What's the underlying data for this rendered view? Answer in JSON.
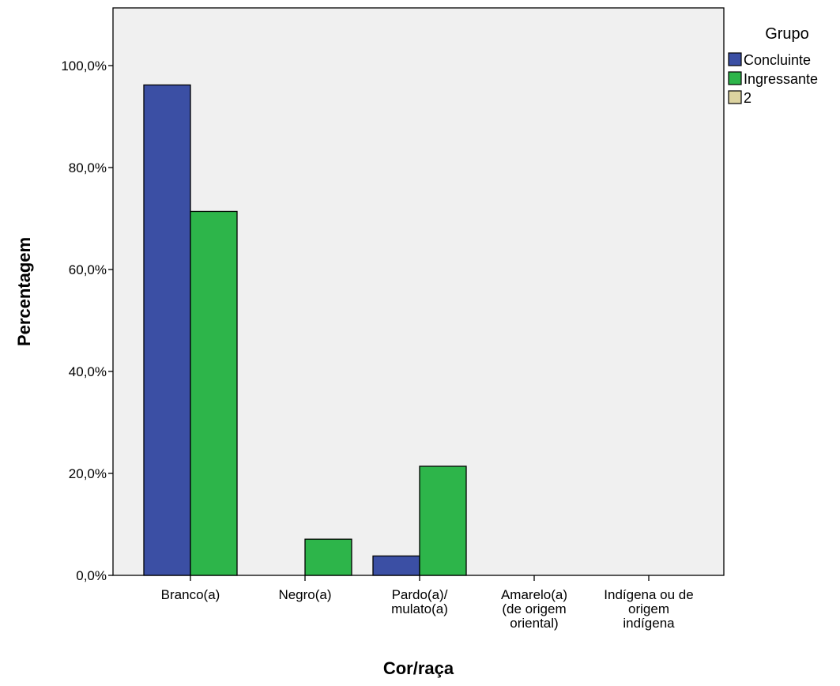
{
  "chart_data": {
    "type": "bar",
    "categories": [
      "Branco(a)",
      "Negro(a)",
      "Pardo(a)/\nmulato(a)",
      "Amarelo(a)\n(de origem\noriental)",
      "Indígena ou de\norigem\nindígena"
    ],
    "series": [
      {
        "name": "Concluinte",
        "values": [
          96.2,
          0,
          3.8,
          0,
          0
        ],
        "color": "#3b4fa4"
      },
      {
        "name": "Ingressante",
        "values": [
          71.4,
          7.1,
          21.4,
          0,
          0
        ],
        "color": "#2db54a"
      },
      {
        "name": "2",
        "values": [
          0,
          0,
          0,
          0,
          0
        ],
        "color": "#dcd3a0"
      }
    ],
    "xlabel": "Cor/raça",
    "ylabel": "Percentagem",
    "ylim": [
      0,
      100
    ],
    "yticks": [
      "0,0%",
      "20,0%",
      "40,0%",
      "60,0%",
      "80,0%",
      "100,0%"
    ],
    "ytick_values": [
      0,
      20,
      40,
      60,
      80,
      100
    ],
    "legend_title": "Grupo",
    "legend_position": "right",
    "plot_background": "#f0f0f0",
    "grid": false
  }
}
